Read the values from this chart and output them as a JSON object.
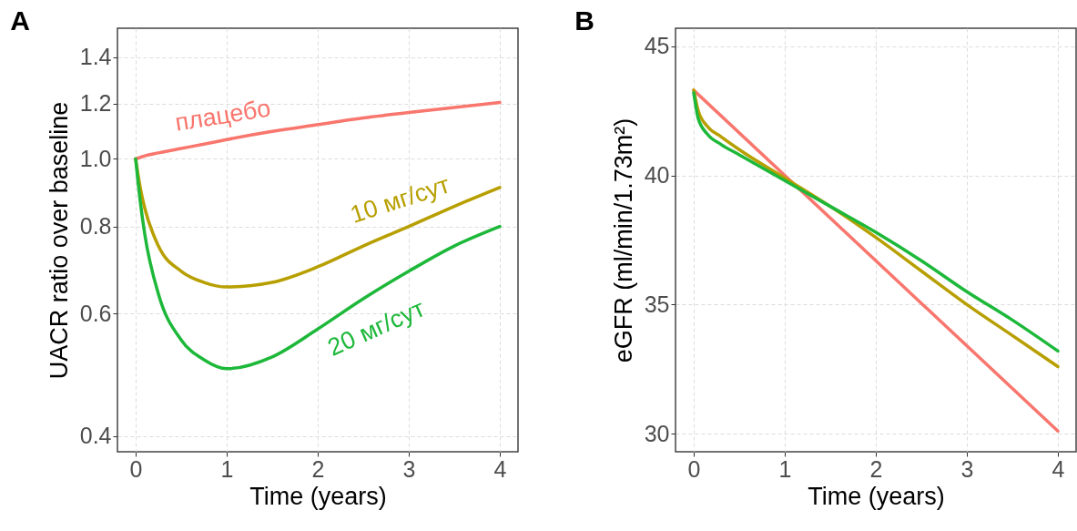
{
  "chart_data": [
    {
      "type": "line",
      "title": "A",
      "xlabel": "Time (years)",
      "ylabel": "UACR ratio over baseline",
      "log": true,
      "grid": true,
      "legend": false,
      "x": [
        0,
        0.05,
        0.1,
        0.25,
        0.5,
        0.75,
        1,
        1.5,
        2,
        2.5,
        3,
        3.5,
        4
      ],
      "xlim": [
        -0.2,
        4.2
      ],
      "xticks": [
        0,
        1,
        2,
        3,
        4
      ],
      "ylim": [
        0.38,
        1.54
      ],
      "yticks": [
        0.4,
        0.6,
        0.8,
        {
          "value": 1,
          "label": "1.0"
        },
        1.2,
        1.4
      ],
      "series": [
        {
          "name": "плацебо",
          "color": "#f8766d",
          "values": [
            1.0,
            1.005,
            1.01,
            1.02,
            1.035,
            1.05,
            1.066,
            1.095,
            1.12,
            1.145,
            1.166,
            1.185,
            1.205
          ]
        },
        {
          "name": "10 мг/сут",
          "color": "#b79f00",
          "values": [
            1.0,
            0.91,
            0.85,
            0.75,
            0.69,
            0.665,
            0.655,
            0.665,
            0.7,
            0.75,
            0.8,
            0.855,
            0.91
          ]
        },
        {
          "name": "20 мг/сут",
          "color": "#1db83a",
          "values": [
            1.0,
            0.87,
            0.78,
            0.64,
            0.55,
            0.515,
            0.5,
            0.52,
            0.57,
            0.63,
            0.69,
            0.75,
            0.8
          ]
        }
      ]
    },
    {
      "type": "line",
      "title": "B",
      "xlabel": "Time (years)",
      "ylabel": "eGFR (ml/min/1.73m²)",
      "grid": true,
      "legend": false,
      "x": [
        0,
        0.05,
        0.15,
        0.3,
        0.5,
        1,
        1.5,
        2,
        2.5,
        3,
        3.5,
        4
      ],
      "xlim": [
        -0.2,
        4.2
      ],
      "xticks": [
        0,
        1,
        2,
        3,
        4
      ],
      "ylim": [
        29.3,
        45.7
      ],
      "yticks": [
        30,
        35,
        40,
        45
      ],
      "series": [
        {
          "color": "#f8766d",
          "x": [
            0,
            4
          ],
          "values": [
            43.3,
            30.1
          ]
        },
        {
          "color": "#b79f00",
          "values": [
            43.3,
            42.5,
            41.9,
            41.5,
            41.0,
            39.9,
            38.8,
            37.6,
            36.3,
            35.0,
            33.8,
            32.6
          ]
        },
        {
          "color": "#1db83a",
          "values": [
            43.2,
            42.2,
            41.6,
            41.2,
            40.8,
            39.8,
            38.8,
            37.8,
            36.7,
            35.5,
            34.4,
            33.2
          ]
        }
      ]
    }
  ]
}
